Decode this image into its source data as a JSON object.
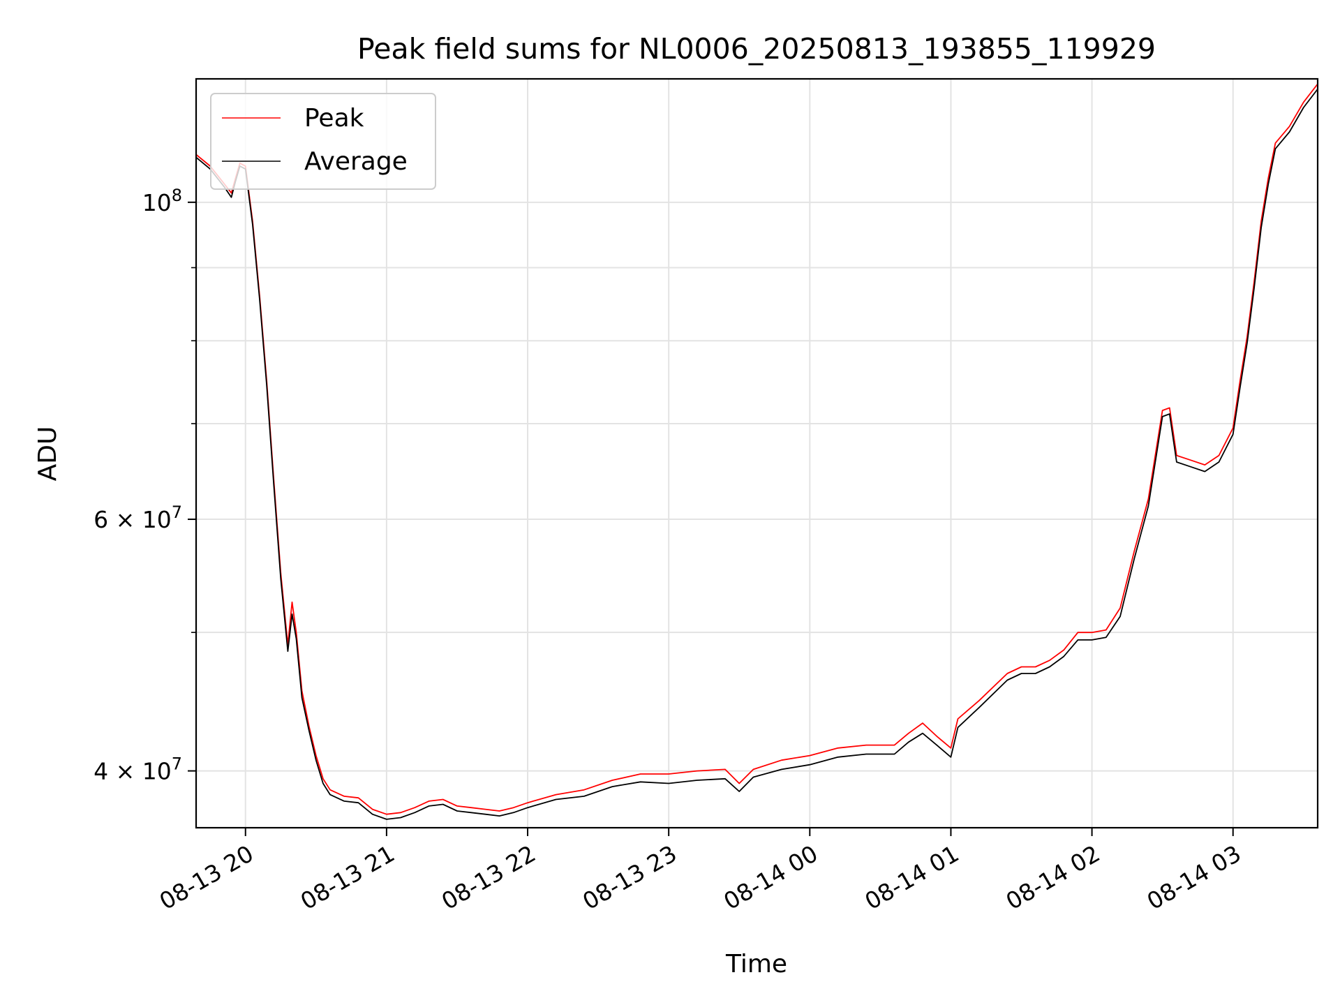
{
  "chart_data": {
    "type": "line",
    "title": "Peak field sums for NL0006_20250813_193855_119929",
    "xlabel": "Time",
    "ylabel": "ADU",
    "y_scale": "log",
    "x_unit": "hours since 08-13 00:00",
    "xlim": [
      19.65,
      27.6
    ],
    "ylim": [
      36500000,
      122000000
    ],
    "grid": true,
    "legend": "top-left",
    "x_ticks": [
      {
        "value": 20,
        "label": "08-13 20"
      },
      {
        "value": 21,
        "label": "08-13 21"
      },
      {
        "value": 22,
        "label": "08-13 22"
      },
      {
        "value": 23,
        "label": "08-13 23"
      },
      {
        "value": 24,
        "label": "08-14 00"
      },
      {
        "value": 25,
        "label": "08-14 01"
      },
      {
        "value": 26,
        "label": "08-14 02"
      },
      {
        "value": 27,
        "label": "08-14 03"
      }
    ],
    "y_ticks": [
      {
        "value": 100000000,
        "base": "10",
        "exp": "8",
        "mult": ""
      },
      {
        "value": 60000000,
        "base": "10",
        "exp": "7",
        "mult": "6 × "
      },
      {
        "value": 40000000,
        "base": "10",
        "exp": "7",
        "mult": "4 × "
      }
    ],
    "y_minor_ticks": [
      50000000,
      70000000,
      80000000,
      90000000
    ],
    "series": [
      {
        "name": "Peak",
        "color": "#ff0000",
        "points": [
          [
            19.65,
            108000000
          ],
          [
            19.75,
            106000000
          ],
          [
            19.85,
            103000000
          ],
          [
            19.9,
            101500000
          ],
          [
            19.93,
            104000000
          ],
          [
            19.96,
            106500000
          ],
          [
            20.0,
            106000000
          ],
          [
            20.05,
            97000000
          ],
          [
            20.1,
            86000000
          ],
          [
            20.15,
            75000000
          ],
          [
            20.2,
            64000000
          ],
          [
            20.25,
            55000000
          ],
          [
            20.3,
            49000000
          ],
          [
            20.33,
            52500000
          ],
          [
            20.36,
            50000000
          ],
          [
            20.4,
            45500000
          ],
          [
            20.45,
            43000000
          ],
          [
            20.5,
            41000000
          ],
          [
            20.55,
            39500000
          ],
          [
            20.6,
            38800000
          ],
          [
            20.7,
            38400000
          ],
          [
            20.8,
            38300000
          ],
          [
            20.9,
            37600000
          ],
          [
            21.0,
            37300000
          ],
          [
            21.1,
            37400000
          ],
          [
            21.2,
            37700000
          ],
          [
            21.3,
            38100000
          ],
          [
            21.4,
            38200000
          ],
          [
            21.5,
            37800000
          ],
          [
            21.6,
            37700000
          ],
          [
            21.7,
            37600000
          ],
          [
            21.8,
            37500000
          ],
          [
            21.9,
            37700000
          ],
          [
            22.0,
            38000000
          ],
          [
            22.2,
            38500000
          ],
          [
            22.4,
            38800000
          ],
          [
            22.6,
            39400000
          ],
          [
            22.8,
            39800000
          ],
          [
            23.0,
            39800000
          ],
          [
            23.2,
            40000000
          ],
          [
            23.4,
            40100000
          ],
          [
            23.5,
            39200000
          ],
          [
            23.6,
            40100000
          ],
          [
            23.8,
            40700000
          ],
          [
            24.0,
            41000000
          ],
          [
            24.2,
            41500000
          ],
          [
            24.4,
            41700000
          ],
          [
            24.6,
            41700000
          ],
          [
            24.7,
            42500000
          ],
          [
            24.8,
            43200000
          ],
          [
            24.9,
            42300000
          ],
          [
            25.0,
            41500000
          ],
          [
            25.05,
            43500000
          ],
          [
            25.2,
            44800000
          ],
          [
            25.4,
            46800000
          ],
          [
            25.5,
            47300000
          ],
          [
            25.6,
            47300000
          ],
          [
            25.7,
            47800000
          ],
          [
            25.8,
            48600000
          ],
          [
            25.9,
            50000000
          ],
          [
            26.0,
            50000000
          ],
          [
            26.1,
            50200000
          ],
          [
            26.2,
            52000000
          ],
          [
            26.3,
            57000000
          ],
          [
            26.4,
            62000000
          ],
          [
            26.5,
            71500000
          ],
          [
            26.55,
            71800000
          ],
          [
            26.6,
            66500000
          ],
          [
            26.7,
            66000000
          ],
          [
            26.8,
            65500000
          ],
          [
            26.9,
            66500000
          ],
          [
            27.0,
            69500000
          ],
          [
            27.05,
            75000000
          ],
          [
            27.1,
            80500000
          ],
          [
            27.15,
            88000000
          ],
          [
            27.2,
            97000000
          ],
          [
            27.25,
            104000000
          ],
          [
            27.3,
            110000000
          ],
          [
            27.4,
            113000000
          ],
          [
            27.5,
            117500000
          ],
          [
            27.6,
            121000000
          ]
        ]
      },
      {
        "name": "Average",
        "color": "#000000",
        "points": [
          [
            19.65,
            107500000
          ],
          [
            19.75,
            105500000
          ],
          [
            19.85,
            102500000
          ],
          [
            19.9,
            100800000
          ],
          [
            19.93,
            103500000
          ],
          [
            19.96,
            106000000
          ],
          [
            20.0,
            105500000
          ],
          [
            20.05,
            96500000
          ],
          [
            20.1,
            85500000
          ],
          [
            20.15,
            74500000
          ],
          [
            20.2,
            63500000
          ],
          [
            20.25,
            54500000
          ],
          [
            20.3,
            48500000
          ],
          [
            20.33,
            51500000
          ],
          [
            20.36,
            49500000
          ],
          [
            20.4,
            45000000
          ],
          [
            20.45,
            42700000
          ],
          [
            20.5,
            40700000
          ],
          [
            20.55,
            39200000
          ],
          [
            20.6,
            38500000
          ],
          [
            20.7,
            38100000
          ],
          [
            20.8,
            38000000
          ],
          [
            20.9,
            37300000
          ],
          [
            21.0,
            37000000
          ],
          [
            21.1,
            37100000
          ],
          [
            21.2,
            37400000
          ],
          [
            21.3,
            37800000
          ],
          [
            21.4,
            37900000
          ],
          [
            21.5,
            37500000
          ],
          [
            21.6,
            37400000
          ],
          [
            21.7,
            37300000
          ],
          [
            21.8,
            37200000
          ],
          [
            21.9,
            37400000
          ],
          [
            22.0,
            37700000
          ],
          [
            22.2,
            38200000
          ],
          [
            22.4,
            38400000
          ],
          [
            22.6,
            39000000
          ],
          [
            22.8,
            39300000
          ],
          [
            23.0,
            39200000
          ],
          [
            23.2,
            39400000
          ],
          [
            23.4,
            39500000
          ],
          [
            23.5,
            38700000
          ],
          [
            23.6,
            39600000
          ],
          [
            23.8,
            40100000
          ],
          [
            24.0,
            40400000
          ],
          [
            24.2,
            40900000
          ],
          [
            24.4,
            41100000
          ],
          [
            24.6,
            41100000
          ],
          [
            24.7,
            41900000
          ],
          [
            24.8,
            42500000
          ],
          [
            24.9,
            41700000
          ],
          [
            25.0,
            40900000
          ],
          [
            25.05,
            42900000
          ],
          [
            25.2,
            44300000
          ],
          [
            25.4,
            46300000
          ],
          [
            25.5,
            46800000
          ],
          [
            25.6,
            46800000
          ],
          [
            25.7,
            47300000
          ],
          [
            25.8,
            48100000
          ],
          [
            25.9,
            49400000
          ],
          [
            26.0,
            49400000
          ],
          [
            26.1,
            49600000
          ],
          [
            26.2,
            51300000
          ],
          [
            26.3,
            56300000
          ],
          [
            26.4,
            61300000
          ],
          [
            26.5,
            70800000
          ],
          [
            26.55,
            71100000
          ],
          [
            26.6,
            65800000
          ],
          [
            26.7,
            65300000
          ],
          [
            26.8,
            64800000
          ],
          [
            26.9,
            65800000
          ],
          [
            27.0,
            68800000
          ],
          [
            27.05,
            74200000
          ],
          [
            27.1,
            79700000
          ],
          [
            27.15,
            87100000
          ],
          [
            27.2,
            96000000
          ],
          [
            27.25,
            103000000
          ],
          [
            27.3,
            109000000
          ],
          [
            27.4,
            112000000
          ],
          [
            27.5,
            116500000
          ],
          [
            27.6,
            120000000
          ]
        ]
      }
    ]
  }
}
